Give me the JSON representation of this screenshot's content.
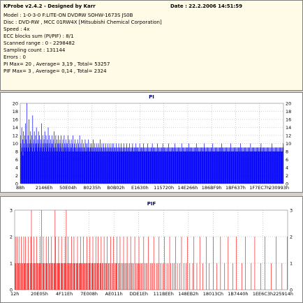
{
  "header": {
    "title": "KProbe v2.4.2 - Designed by Karr",
    "date": "Date : 22.2.2006 14:51:59"
  },
  "info": {
    "model": "Model : 1-0-3-0 F:LITE-ON DVDRW SOHW-1673S JS0B",
    "disc": "Disc : DVD-RW , MCC 01RW4X   [Mitsubishi Chemical Corporation]",
    "speed": "Speed : 4x",
    "ecc": "ECC blocks sum (PI/PIF) : 8/1",
    "scanned_range": "Scanned range : 0 - 2298482",
    "sampling_count": "Sampling count : 131144",
    "errors": "Errors : 0",
    "pi_summary": "PI Max= 20 , Average= 3,19 , Total= 53257",
    "pif_summary": "PIF Max= 3 , Average= 0,14 , Total= 2324"
  },
  "chart_data": [
    {
      "type": "bar",
      "title": "PI",
      "x_ticks": [
        "88h",
        "2146Eh",
        "50E04h",
        "80235h",
        "B0B02h",
        "E1630h",
        "115720h",
        "14E266h",
        "186BF9h",
        "1BF637h",
        "1F7EC7h",
        "230993h"
      ],
      "ylim": [
        0,
        20
      ],
      "y_ticks": [
        0,
        2,
        4,
        6,
        8,
        10,
        12,
        14,
        16,
        18,
        20
      ],
      "grid": true,
      "color": "#0000ff",
      "background": "#ffffff",
      "series": [
        {
          "values": [
            12,
            10,
            8,
            14,
            9,
            11,
            7,
            13,
            9,
            10,
            12,
            8,
            15,
            9,
            11,
            20,
            10,
            8,
            12,
            9,
            16,
            10,
            8,
            11,
            13,
            9,
            10,
            12,
            8,
            17,
            10,
            9,
            11,
            13,
            8,
            10,
            12,
            9,
            14,
            10,
            8,
            11,
            9,
            13,
            10,
            12,
            8,
            9,
            11,
            10,
            15,
            9,
            8,
            12,
            10,
            9,
            11,
            8,
            13,
            10,
            9,
            12,
            8,
            10,
            11,
            9,
            14,
            8,
            10,
            12,
            9,
            8,
            11,
            10,
            9,
            12,
            8,
            10,
            9,
            11,
            13,
            8,
            9,
            10,
            12,
            8,
            9,
            11,
            10,
            8,
            12,
            9,
            10,
            8,
            11,
            9,
            10,
            12,
            8,
            9,
            10,
            11,
            8,
            9,
            12,
            10,
            8,
            9,
            11,
            10,
            8,
            9,
            10,
            12,
            8,
            9,
            11,
            8,
            10,
            9,
            8,
            11,
            9,
            10,
            8,
            12,
            9,
            8,
            10,
            9,
            11,
            8,
            9,
            10,
            8,
            9,
            11,
            8,
            10,
            9,
            8,
            12,
            9,
            8,
            10,
            9,
            8,
            11,
            9,
            8,
            10,
            9,
            8,
            9,
            11,
            8,
            10,
            8,
            9,
            10,
            8,
            9,
            11,
            8,
            9,
            8,
            10,
            9,
            8,
            9,
            10,
            8,
            9,
            11,
            8,
            9,
            8,
            10,
            9,
            8,
            9,
            8,
            10,
            9,
            8,
            9,
            10,
            8,
            9,
            8,
            11,
            9,
            8,
            9,
            10,
            8,
            9,
            8,
            10,
            9,
            8,
            9,
            8,
            10,
            9,
            8,
            9,
            8,
            10,
            8,
            9,
            8,
            9,
            10,
            8,
            9,
            8,
            9,
            10,
            8,
            9,
            8,
            10,
            9,
            8,
            9,
            8,
            9,
            10,
            8,
            9,
            8,
            9,
            8,
            10,
            9,
            8,
            9,
            8,
            9,
            10,
            8,
            9,
            8,
            9,
            8,
            10,
            9,
            8,
            9,
            8,
            9,
            8,
            10,
            9,
            8,
            9,
            8,
            9,
            8,
            10,
            8,
            9,
            8,
            9,
            8,
            9,
            10,
            8,
            9,
            8,
            9,
            8,
            9,
            8,
            10,
            9,
            8,
            9,
            8,
            9,
            8,
            9,
            8,
            10,
            8,
            9,
            8,
            9,
            8,
            9,
            8,
            9,
            10,
            8,
            9,
            8,
            9,
            8,
            9,
            8,
            9,
            8,
            10,
            8,
            9,
            8,
            9,
            8,
            9,
            8,
            9,
            8,
            9,
            10,
            8,
            9,
            8,
            9,
            8,
            9,
            8,
            9,
            8,
            9,
            8,
            10,
            8,
            9,
            8,
            9,
            8,
            9,
            8,
            9,
            8,
            9,
            8,
            9,
            10,
            8,
            9,
            8,
            9,
            8,
            9,
            8,
            9,
            8,
            9,
            8,
            9,
            8,
            10,
            8,
            9,
            8,
            9,
            8,
            9,
            8,
            9,
            8,
            9,
            8,
            9,
            8,
            9,
            10,
            8,
            9,
            8,
            9,
            8,
            9,
            8,
            9,
            8,
            9,
            8,
            9,
            8,
            9,
            8,
            10,
            8,
            9,
            8,
            9,
            8,
            9,
            8,
            9,
            8,
            9,
            8,
            9,
            8,
            9,
            8,
            9,
            10,
            9,
            8,
            9,
            8,
            9,
            8,
            9,
            8,
            9,
            8,
            9,
            8,
            9,
            8,
            9,
            8,
            9,
            10,
            8,
            9,
            8,
            9,
            8,
            9,
            8,
            9,
            8,
            9,
            8,
            9,
            8,
            9,
            8,
            9,
            8,
            9,
            10,
            8,
            9,
            8,
            9,
            8,
            9,
            8,
            9,
            8,
            9,
            8,
            9,
            8,
            9,
            8,
            9,
            8,
            9,
            8,
            10,
            8,
            9,
            8,
            9,
            8,
            9,
            8,
            9,
            8,
            9,
            8,
            9,
            8,
            9,
            8,
            9,
            8,
            9,
            8,
            9,
            10,
            8,
            9,
            8,
            9,
            8,
            9,
            8,
            9,
            8,
            9,
            8,
            9,
            8,
            9,
            8,
            9,
            8,
            9,
            8,
            9,
            8,
            10,
            8,
            9,
            8,
            9,
            8,
            9,
            8,
            9,
            8,
            9,
            8,
            9,
            8,
            9,
            8,
            9,
            8,
            9,
            8,
            9,
            8,
            9,
            10,
            8,
            9,
            8,
            9,
            8,
            9,
            8,
            9,
            8,
            9,
            8,
            9,
            8,
            9,
            8,
            9,
            8,
            9,
            8,
            9,
            8,
            9,
            8,
            10,
            8,
            9,
            8,
            9,
            8,
            9,
            8,
            9,
            8,
            9,
            8,
            9,
            8,
            9,
            8,
            9,
            8,
            9,
            8,
            9,
            8,
            9,
            8,
            9,
            10,
            8,
            9,
            8,
            9,
            8,
            9,
            8,
            9,
            8,
            9,
            8,
            9,
            8,
            9,
            8,
            9,
            8,
            9,
            8,
            9,
            8,
            9,
            8,
            9,
            8,
            10,
            8,
            9,
            8,
            9,
            8,
            9,
            8,
            9,
            8,
            9,
            8,
            9,
            8,
            9,
            8,
            9,
            8,
            9,
            8,
            9,
            8,
            9,
            8,
            9,
            8,
            9,
            10
          ]
        }
      ]
    },
    {
      "type": "bar",
      "title": "PIF",
      "x_ticks": [
        "12h",
        "20E05h",
        "4F11Eh",
        "7E008h",
        "AE011h",
        "DDE1Eh",
        "111BEEh",
        "148EB2h",
        "18013Ch",
        "1B7440h",
        "1EE6C3h",
        "225914h"
      ],
      "ylim": [
        0,
        3
      ],
      "y_ticks": [
        0,
        1,
        2,
        3
      ],
      "grid": true,
      "color": "#ff0000",
      "background": "#ffffff",
      "series": [
        {
          "values": [
            1,
            2,
            1,
            0,
            2,
            1,
            1,
            2,
            1,
            0,
            1,
            2,
            1,
            1,
            0,
            2,
            1,
            1,
            2,
            1,
            0,
            1,
            1,
            2,
            1,
            0,
            1,
            2,
            3,
            1,
            0,
            1,
            2,
            1,
            1,
            0,
            1,
            2,
            1,
            1,
            0,
            1,
            1,
            2,
            1,
            3,
            0,
            1,
            2,
            1,
            1,
            0,
            1,
            2,
            1,
            1,
            0,
            2,
            1,
            1,
            0,
            1,
            2,
            1,
            1,
            0,
            1,
            1,
            3,
            2,
            1,
            0,
            1,
            1,
            2,
            1,
            1,
            0,
            1,
            2,
            1,
            1,
            0,
            1,
            1,
            2,
            1,
            3,
            0,
            1,
            2,
            1,
            1,
            0,
            1,
            1,
            2,
            1,
            0,
            1,
            2,
            1,
            1,
            0,
            1,
            1,
            2,
            1,
            0,
            1,
            1,
            2,
            1,
            1,
            0,
            1,
            2,
            1,
            1,
            0,
            1,
            1,
            2,
            1,
            0,
            1,
            1,
            2,
            1,
            0,
            1,
            1,
            2,
            1,
            0,
            1,
            1,
            2,
            0,
            1,
            1,
            2,
            1,
            0,
            1,
            1,
            2,
            0,
            1,
            1,
            0,
            2,
            1,
            0,
            1,
            1,
            2,
            0,
            1,
            1,
            0,
            1,
            2,
            0,
            1,
            0,
            1,
            2,
            0,
            1,
            0,
            1,
            1,
            2,
            0,
            1,
            0,
            1,
            2,
            0,
            1,
            0,
            1,
            0,
            2,
            1,
            0,
            1,
            0,
            1,
            2,
            0,
            1,
            0,
            1,
            0,
            2,
            1,
            0,
            1,
            0,
            1,
            0,
            2,
            0,
            1,
            0,
            1,
            0,
            1,
            2,
            0,
            1,
            0,
            1,
            0,
            1,
            0,
            2,
            0,
            1,
            0,
            1,
            0,
            1,
            0,
            2,
            0,
            0,
            1,
            0,
            1,
            0,
            1,
            0,
            2,
            0,
            1,
            0,
            0,
            1,
            0,
            1,
            0,
            2,
            0,
            1,
            0,
            0,
            1,
            0,
            0,
            1,
            2,
            0,
            0,
            1,
            0,
            0,
            1,
            0,
            0,
            2,
            0,
            1,
            0,
            0,
            1,
            0,
            0,
            1,
            0,
            2,
            0,
            0,
            1,
            0,
            0,
            0,
            1,
            0,
            0,
            2,
            0,
            0,
            0,
            1,
            0,
            0,
            0,
            1,
            0,
            2,
            0,
            0,
            0,
            1,
            0,
            0,
            0,
            0,
            1,
            0,
            2,
            0,
            0,
            0,
            0,
            1,
            0,
            0,
            0,
            0,
            2,
            0,
            0,
            0,
            0,
            1,
            0,
            0,
            0,
            0,
            0,
            2,
            0,
            0,
            0,
            0,
            1,
            0,
            0,
            0,
            0,
            0,
            0,
            2,
            0,
            0,
            0,
            0,
            0,
            1,
            0,
            0,
            0,
            0,
            0,
            2,
            0,
            0,
            0,
            0,
            0,
            0,
            1,
            0,
            0,
            0,
            0,
            0,
            2,
            0,
            0,
            0,
            0,
            0,
            0,
            0,
            1,
            0,
            0,
            0,
            0,
            0,
            2,
            0,
            0,
            0,
            0,
            0,
            0,
            0,
            0,
            1,
            0,
            0,
            0,
            0,
            0,
            2,
            0,
            0,
            0,
            0,
            0,
            0,
            0,
            0,
            0,
            1,
            0,
            0,
            0,
            0,
            0,
            2,
            0,
            0,
            0,
            0,
            0,
            0,
            0,
            0,
            0,
            1,
            0,
            0,
            0,
            0,
            0,
            0,
            2,
            0,
            0,
            0,
            0,
            0,
            0,
            0,
            0,
            0,
            0,
            1,
            0,
            0,
            0,
            0,
            0,
            0,
            0,
            2,
            0,
            0,
            0,
            0,
            0,
            0,
            0,
            0,
            0,
            1,
            0,
            0,
            0,
            0,
            0,
            0,
            0,
            0,
            2
          ]
        }
      ]
    }
  ]
}
